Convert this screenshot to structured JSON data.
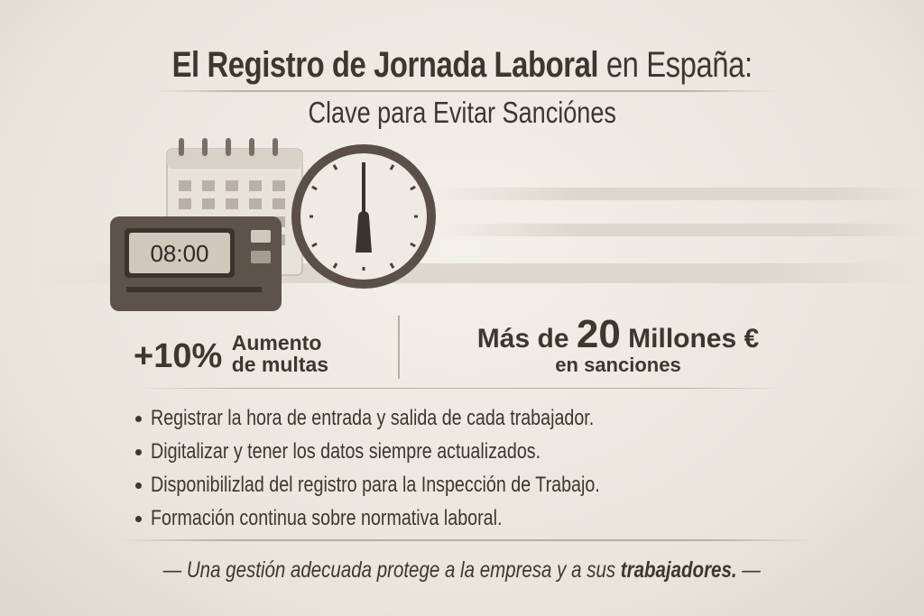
{
  "title": {
    "bold": "El Registro de Jornada Laboral",
    "regular": "en España:"
  },
  "subtitle": "Clave para Evitar Sanciónes",
  "illustration": {
    "time_clock_display": "08:00",
    "icons": [
      "calendar-icon",
      "time-clock-icon",
      "wall-clock-icon"
    ]
  },
  "stats": {
    "left": {
      "value": "+10%",
      "line1": "Aumento",
      "line2": "de multas"
    },
    "right": {
      "prefix": "Más de",
      "value": "20",
      "suffix": "Millones €",
      "line2": "en sanciones"
    }
  },
  "bullets": [
    "Registrar la hora de entrada y salida de cada trabajador.",
    "Digitalizar y tener los datos siempre actualizados.",
    "Disponibilizlad del registro para la Inspección de Trabajo.",
    "Formación continua sobre normativa laboral."
  ],
  "footer": {
    "regular": "Una gestión adecuada protege a la empresa y a sus",
    "bold": "trabajadores.",
    "dash": "—"
  },
  "colors": {
    "text": "#3f3630",
    "background": "#ece8e1",
    "device": "#5e534b"
  }
}
